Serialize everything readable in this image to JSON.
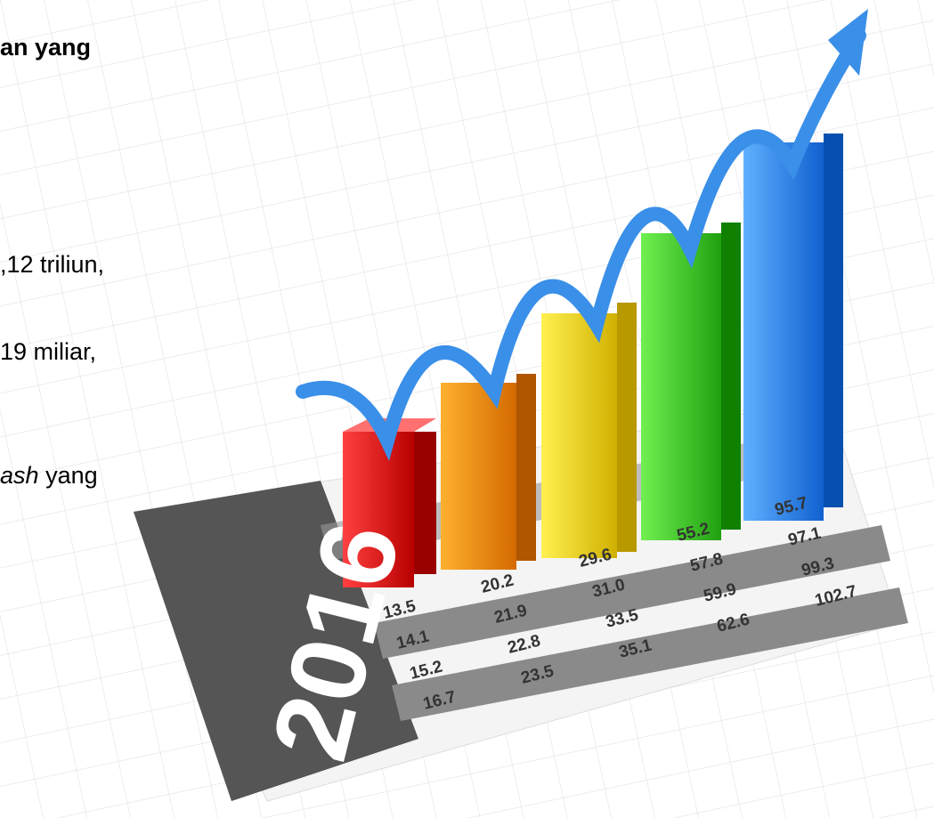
{
  "slide": {
    "lines": [
      "an yang",
      ",12 triliun,",
      "19 miliar,",
      {
        "italic": "ash",
        "rest": "yang"
      }
    ],
    "image": {
      "year": "2016",
      "table": {
        "rows": [
          [
            "13.5",
            "20.2",
            "29.6",
            "55.2",
            "95.7"
          ],
          [
            "14.1",
            "21.9",
            "31.0",
            "57.8",
            "97.1"
          ],
          [
            "15.2",
            "22.8",
            "33.5",
            "59.9",
            "99.3"
          ],
          [
            "16.7",
            "23.5",
            "35.1",
            "62.6",
            "102.7"
          ]
        ]
      }
    }
  }
}
